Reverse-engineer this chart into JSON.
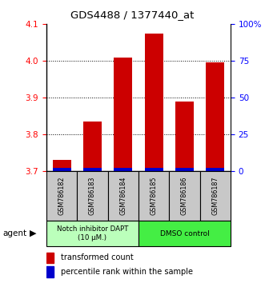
{
  "title": "GDS4488 / 1377440_at",
  "samples": [
    "GSM786182",
    "GSM786183",
    "GSM786184",
    "GSM786185",
    "GSM786186",
    "GSM786187"
  ],
  "red_values": [
    3.73,
    3.835,
    4.01,
    4.075,
    3.89,
    3.995
  ],
  "blue_values": [
    3.702,
    3.702,
    3.702,
    3.702,
    3.702,
    3.703
  ],
  "ylim_left": [
    3.7,
    4.1
  ],
  "ylim_right": [
    0,
    100
  ],
  "yticks_left": [
    3.7,
    3.8,
    3.9,
    4.0,
    4.1
  ],
  "yticks_right": [
    0,
    25,
    50,
    75,
    100
  ],
  "ytick_labels_right": [
    "0",
    "25",
    "50",
    "75",
    "100%"
  ],
  "group1_label": "Notch inhibitor DAPT\n(10 μM.)",
  "group2_label": "DMSO control",
  "group1_color": "#bbffbb",
  "group2_color": "#44ee44",
  "bar_bg_color": "#c8c8c8",
  "red_color": "#cc0000",
  "blue_color": "#0000cc",
  "legend_red": "transformed count",
  "legend_blue": "percentile rank within the sample",
  "bar_width": 0.6,
  "agent_label": "agent"
}
